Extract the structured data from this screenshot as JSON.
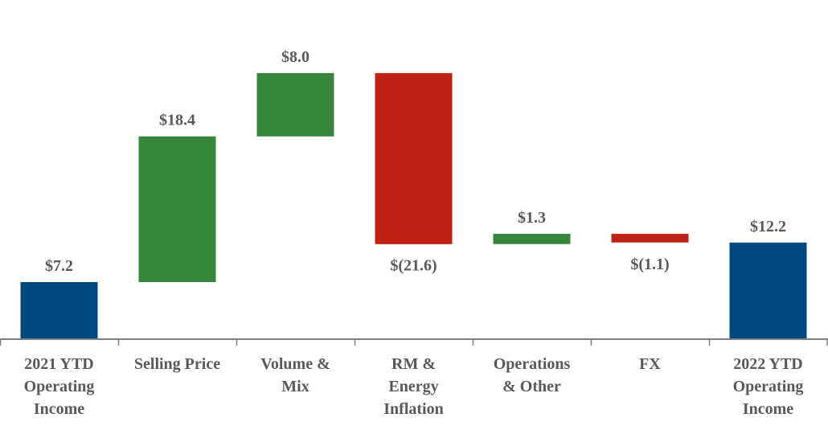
{
  "chart_data": {
    "type": "waterfall",
    "categories": [
      [
        "2021 YTD",
        "Operating",
        "Income"
      ],
      [
        "Selling Price"
      ],
      [
        "Volume &",
        "Mix"
      ],
      [
        "RM &",
        "Energy",
        "Inflation"
      ],
      [
        "Operations",
        "& Other"
      ],
      [
        "FX"
      ],
      [
        "2022 YTD",
        "Operating",
        "Income"
      ]
    ],
    "values": [
      7.2,
      18.4,
      8.0,
      -21.6,
      1.3,
      -1.1,
      12.2
    ],
    "kinds": [
      "total",
      "delta",
      "delta",
      "delta",
      "delta",
      "delta",
      "total"
    ],
    "labels": [
      "$7.2",
      "$18.4",
      "$8.0",
      "$(21.6)",
      "$1.3",
      "$(1.1)",
      "$12.2"
    ],
    "ylim": [
      0,
      34.3
    ],
    "grid": false,
    "colors": {
      "total": "#00497e",
      "increase": "#36873d",
      "decrease": "#be2116",
      "axis": "#7f7f7f",
      "text": "#595959"
    }
  }
}
